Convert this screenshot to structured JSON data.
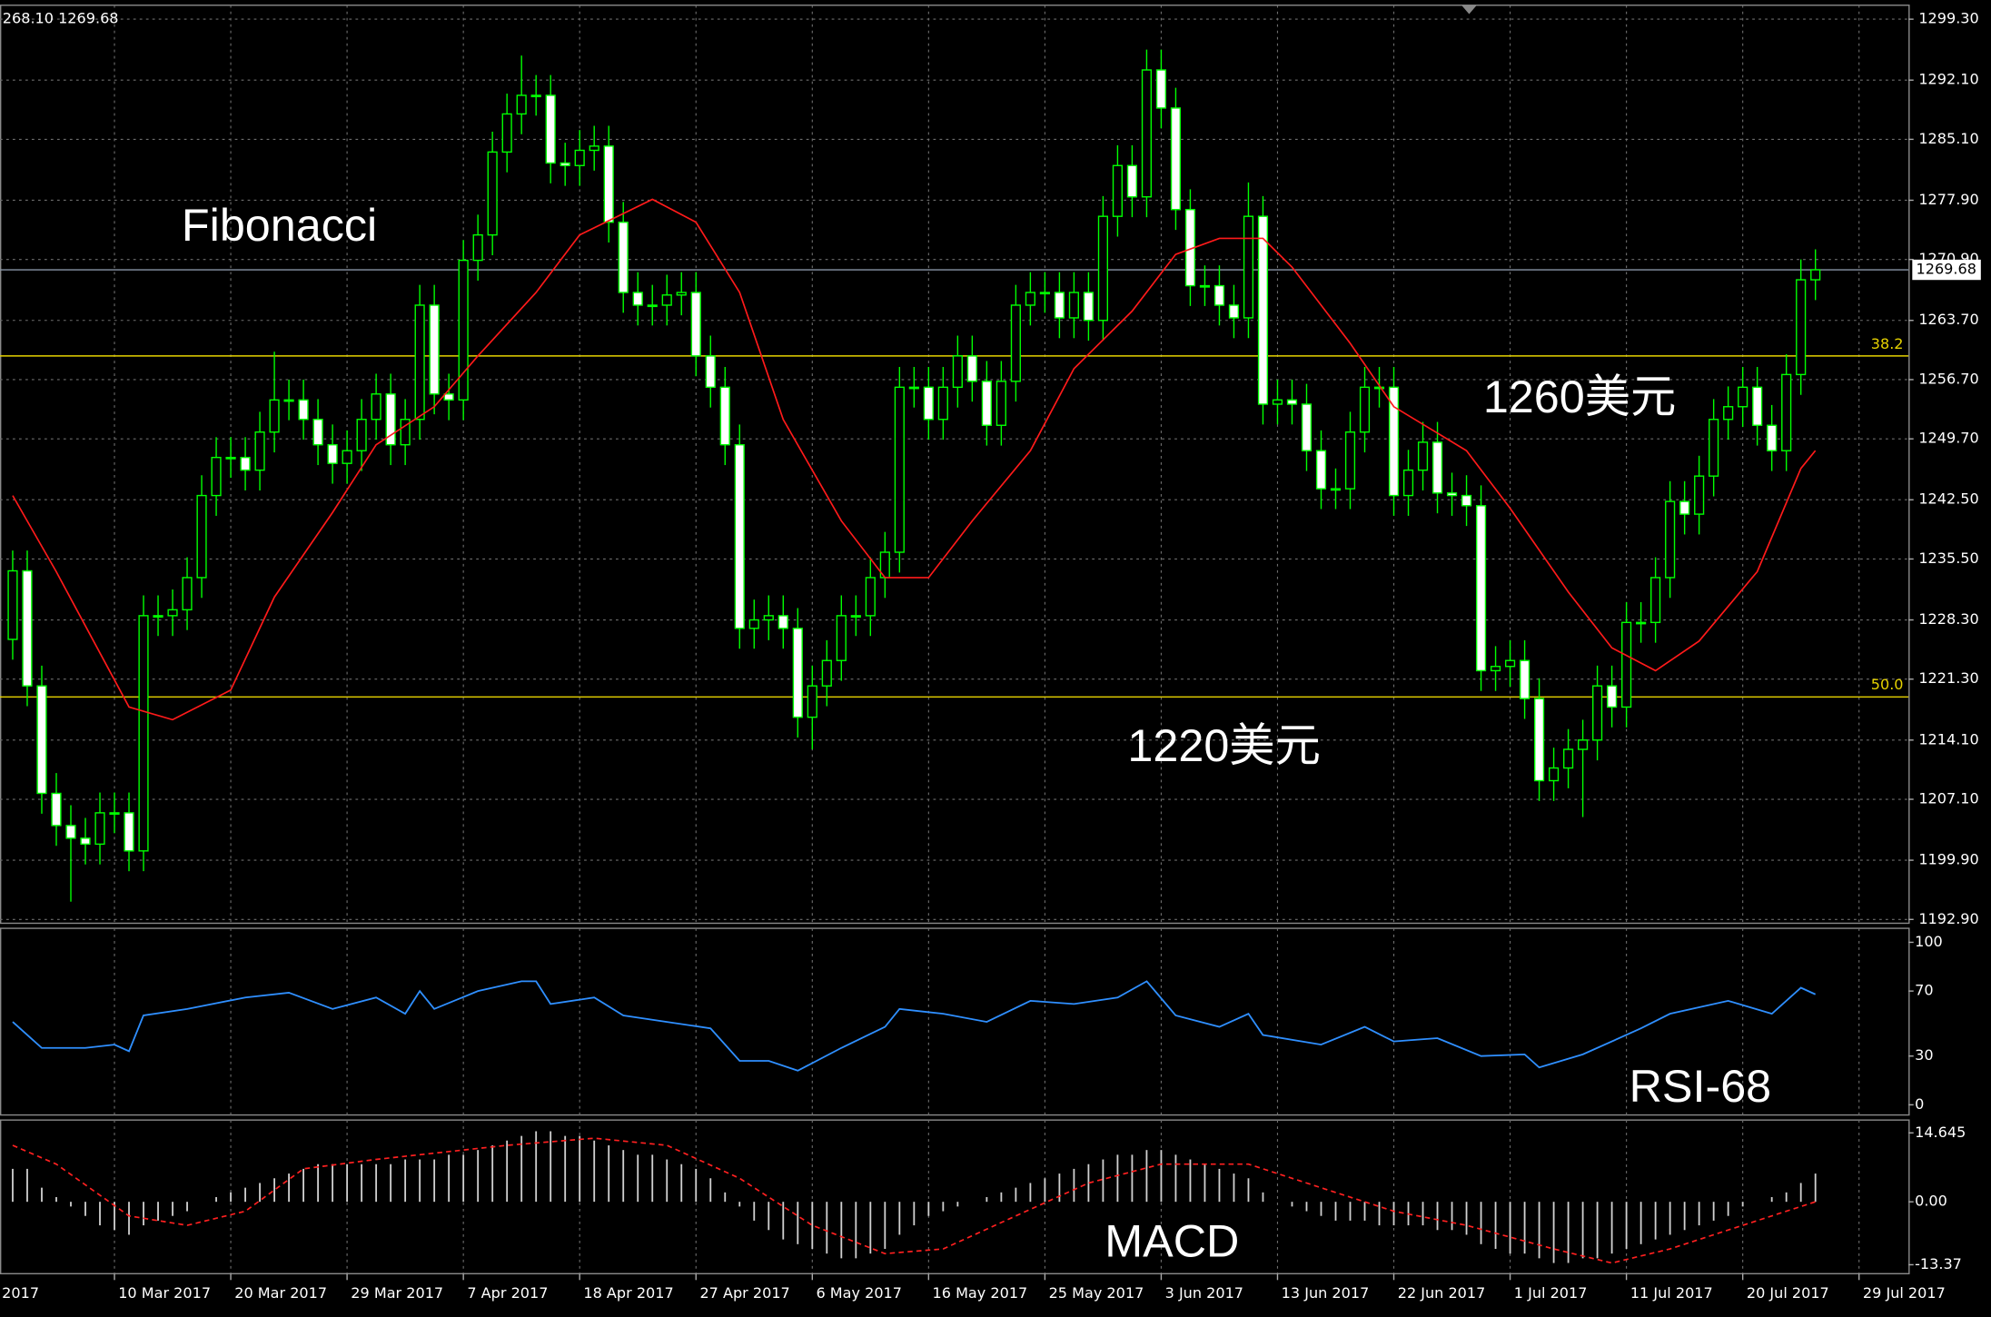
{
  "chart_data": [
    {
      "type": "candlestick",
      "header": "268.10 1269.68",
      "color": "#00ff00",
      "up_color": "#000000",
      "down_color": "#ffffff",
      "open": [
        1226.0,
        1234.1,
        1220.5,
        1207.8,
        1204.0,
        1202.5,
        1201.8,
        1205.5,
        1205.5,
        1201.0,
        1228.8,
        1228.8,
        1229.5,
        1233.3,
        1243.0,
        1247.5,
        1247.5,
        1246.0,
        1250.5,
        1254.3,
        1254.3,
        1252.0,
        1249.0,
        1246.8,
        1248.3,
        1252.0,
        1255.0,
        1249.0,
        1252.0,
        1265.5,
        1255.0,
        1254.3,
        1270.8,
        1273.8,
        1283.6,
        1288.1,
        1290.3,
        1290.3,
        1282.3,
        1282.0,
        1283.8,
        1284.3,
        1275.3,
        1267.0,
        1265.5,
        1265.5,
        1266.7,
        1267.0,
        1259.5,
        1255.8,
        1249.0,
        1227.3,
        1228.3,
        1228.8,
        1227.3,
        1216.8,
        1220.5,
        1223.5,
        1228.8,
        1228.8,
        1233.3,
        1236.3,
        1255.8,
        1255.8,
        1252.0,
        1255.8,
        1259.5,
        1256.5,
        1251.3,
        1256.5,
        1265.5,
        1267.0,
        1267.0,
        1264.0,
        1267.0,
        1263.7,
        1276.0,
        1282.0,
        1278.3,
        1293.3,
        1288.8,
        1276.8,
        1267.8,
        1267.8,
        1265.5,
        1264.0,
        1276.0,
        1253.8,
        1254.3,
        1253.8,
        1248.3,
        1243.8,
        1243.8,
        1250.5,
        1255.8,
        1255.8,
        1243.0,
        1246.0,
        1249.3,
        1243.3,
        1243.0,
        1241.8,
        1222.3,
        1222.8,
        1223.5,
        1219.0,
        1209.3,
        1210.8,
        1213.0,
        1214.1,
        1220.5,
        1218.0,
        1228.0,
        1228.0,
        1233.3,
        1242.3,
        1240.8,
        1245.3,
        1252.0,
        1253.5,
        1255.8,
        1251.3,
        1248.3,
        1257.3,
        1268.5
      ],
      "high": [
        1236.5,
        1236.5,
        1222.9,
        1210.2,
        1206.4,
        1204.9,
        1207.9,
        1207.9,
        1207.9,
        1231.2,
        1231.2,
        1231.9,
        1235.7,
        1245.4,
        1249.9,
        1249.9,
        1249.9,
        1252.9,
        1260.0,
        1256.7,
        1256.7,
        1254.4,
        1251.4,
        1250.7,
        1254.4,
        1257.4,
        1257.4,
        1254.4,
        1267.9,
        1267.9,
        1257.4,
        1273.2,
        1276.2,
        1286.0,
        1290.5,
        1295.0,
        1292.7,
        1292.7,
        1284.7,
        1286.2,
        1286.7,
        1286.7,
        1277.7,
        1269.4,
        1267.9,
        1269.1,
        1269.4,
        1269.4,
        1261.9,
        1258.2,
        1251.4,
        1230.7,
        1231.2,
        1231.2,
        1229.7,
        1222.9,
        1225.9,
        1231.2,
        1231.2,
        1235.7,
        1238.7,
        1258.2,
        1258.2,
        1258.2,
        1258.2,
        1261.9,
        1261.9,
        1258.9,
        1258.9,
        1267.9,
        1269.4,
        1269.4,
        1269.4,
        1269.4,
        1269.4,
        1278.4,
        1284.4,
        1284.4,
        1295.7,
        1295.7,
        1291.2,
        1279.2,
        1270.2,
        1270.2,
        1267.9,
        1280.0,
        1278.4,
        1256.7,
        1256.7,
        1256.2,
        1250.7,
        1246.2,
        1252.9,
        1258.2,
        1258.2,
        1258.2,
        1248.4,
        1251.7,
        1251.7,
        1245.7,
        1245.4,
        1244.2,
        1225.2,
        1225.9,
        1225.9,
        1221.4,
        1213.2,
        1215.4,
        1216.5,
        1222.9,
        1222.9,
        1230.4,
        1230.4,
        1235.7,
        1244.7,
        1244.7,
        1247.7,
        1254.4,
        1255.9,
        1258.2,
        1258.2,
        1253.7,
        1259.7,
        1270.9,
        1272.1
      ],
      "low": [
        1223.6,
        1218.1,
        1205.4,
        1201.6,
        1195.0,
        1199.4,
        1199.4,
        1203.1,
        1198.6,
        1198.6,
        1226.4,
        1226.4,
        1227.1,
        1230.9,
        1240.6,
        1245.1,
        1243.6,
        1243.6,
        1248.1,
        1251.9,
        1249.6,
        1246.6,
        1244.4,
        1244.4,
        1245.9,
        1249.6,
        1246.6,
        1246.6,
        1249.6,
        1252.6,
        1251.9,
        1251.9,
        1268.4,
        1271.4,
        1281.2,
        1285.7,
        1287.9,
        1279.9,
        1279.6,
        1279.6,
        1281.4,
        1272.9,
        1264.6,
        1263.1,
        1263.1,
        1263.1,
        1264.3,
        1257.1,
        1253.4,
        1246.6,
        1224.9,
        1224.9,
        1225.9,
        1224.9,
        1214.4,
        1213.0,
        1218.1,
        1221.1,
        1226.4,
        1226.4,
        1230.9,
        1233.9,
        1253.4,
        1249.6,
        1249.6,
        1253.4,
        1254.1,
        1248.9,
        1248.9,
        1254.1,
        1263.1,
        1264.6,
        1261.6,
        1261.6,
        1261.3,
        1261.3,
        1273.6,
        1275.9,
        1275.9,
        1286.4,
        1274.4,
        1265.4,
        1265.4,
        1263.1,
        1261.6,
        1261.6,
        1251.4,
        1251.4,
        1251.4,
        1245.9,
        1241.4,
        1241.4,
        1241.4,
        1248.1,
        1253.4,
        1240.6,
        1240.6,
        1243.6,
        1240.9,
        1240.6,
        1239.4,
        1219.9,
        1219.9,
        1220.4,
        1216.6,
        1206.9,
        1206.9,
        1208.4,
        1205.0,
        1211.7,
        1215.6,
        1215.6,
        1225.6,
        1225.6,
        1230.9,
        1238.4,
        1238.4,
        1242.9,
        1249.6,
        1251.1,
        1248.9,
        1245.9,
        1245.9,
        1254.9,
        1266.1
      ],
      "close": [
        1234.1,
        1220.5,
        1207.8,
        1204.0,
        1202.5,
        1201.8,
        1205.5,
        1205.5,
        1201.0,
        1228.8,
        1228.8,
        1229.5,
        1233.3,
        1243.0,
        1247.5,
        1247.5,
        1246.0,
        1250.5,
        1254.3,
        1254.3,
        1252.0,
        1249.0,
        1246.8,
        1248.3,
        1252.0,
        1255.0,
        1249.0,
        1252.0,
        1265.5,
        1255.0,
        1254.3,
        1270.8,
        1273.8,
        1283.6,
        1288.1,
        1290.3,
        1290.3,
        1282.3,
        1282.0,
        1283.8,
        1284.3,
        1275.3,
        1267.0,
        1265.5,
        1265.5,
        1266.7,
        1267.0,
        1259.5,
        1255.8,
        1249.0,
        1227.3,
        1228.3,
        1228.8,
        1227.3,
        1216.8,
        1220.5,
        1223.5,
        1228.8,
        1228.8,
        1233.3,
        1236.3,
        1255.8,
        1255.8,
        1252.0,
        1255.8,
        1259.5,
        1256.5,
        1251.3,
        1256.5,
        1265.5,
        1267.0,
        1267.0,
        1264.0,
        1267.0,
        1263.7,
        1276.0,
        1282.0,
        1278.3,
        1293.3,
        1288.8,
        1276.8,
        1267.8,
        1267.8,
        1265.5,
        1264.0,
        1276.0,
        1253.8,
        1254.3,
        1253.8,
        1248.3,
        1243.8,
        1243.8,
        1250.5,
        1255.8,
        1255.8,
        1243.0,
        1246.0,
        1249.3,
        1243.3,
        1243.0,
        1241.8,
        1222.3,
        1222.8,
        1223.5,
        1219.0,
        1209.3,
        1210.8,
        1213.0,
        1214.1,
        1220.5,
        1218.0,
        1228.0,
        1228.0,
        1233.3,
        1242.3,
        1240.8,
        1245.3,
        1252.0,
        1253.5,
        1255.8,
        1251.3,
        1248.3,
        1257.3,
        1268.5,
        1269.68
      ],
      "xlim": [
        -0.873,
        130.4
      ],
      "xticks": [
        {
          "value": -1,
          "label": "2017"
        },
        {
          "value": 7,
          "label": "10 Mar 2017"
        },
        {
          "value": 15,
          "label": "20 Mar 2017"
        },
        {
          "value": 23,
          "label": "29 Mar 2017"
        },
        {
          "value": 31,
          "label": "7 Apr 2017"
        },
        {
          "value": 39,
          "label": "18 Apr 2017"
        },
        {
          "value": 47,
          "label": "27 Apr 2017"
        },
        {
          "value": 55,
          "label": "6 May 2017"
        },
        {
          "value": 63,
          "label": "16 May 2017"
        },
        {
          "value": 71,
          "label": "25 May 2017"
        },
        {
          "value": 79,
          "label": "3 Jun 2017"
        },
        {
          "value": 87,
          "label": "13 Jun 2017"
        },
        {
          "value": 95,
          "label": "22 Jun 2017"
        },
        {
          "value": 103,
          "label": "1 Jul 2017"
        },
        {
          "value": 111,
          "label": "11 Jul 2017"
        },
        {
          "value": 119,
          "label": "20 Jul 2017"
        },
        {
          "value": 127,
          "label": "29 Jul 2017"
        }
      ],
      "ylim": [
        1192.45,
        1300.95
      ],
      "yticks": [
        {
          "value": 1299.3,
          "label": "1299.30"
        },
        {
          "value": 1292.1,
          "label": "1292.10"
        },
        {
          "value": 1285.1,
          "label": "1285.10"
        },
        {
          "value": 1277.9,
          "label": "1277.90"
        },
        {
          "value": 1270.9,
          "label": "1270.90"
        },
        {
          "value": 1263.7,
          "label": "1263.70"
        },
        {
          "value": 1256.7,
          "label": "1256.70"
        },
        {
          "value": 1249.7,
          "label": "1249.70"
        },
        {
          "value": 1242.5,
          "label": "1242.50"
        },
        {
          "value": 1235.5,
          "label": "1235.50"
        },
        {
          "value": 1228.3,
          "label": "1228.30"
        },
        {
          "value": 1221.3,
          "label": "1221.30"
        },
        {
          "value": 1214.1,
          "label": "1214.10"
        },
        {
          "value": 1207.1,
          "label": "1207.10"
        },
        {
          "value": 1199.9,
          "label": "1199.90"
        },
        {
          "value": 1192.9,
          "label": "1192.90"
        }
      ],
      "grid": true,
      "moving_average": {
        "color": "#ff1a1a",
        "x": [
          0,
          3,
          8,
          11,
          15,
          18,
          22,
          25,
          29,
          32,
          36,
          39,
          44,
          47,
          50,
          53,
          57,
          60,
          63,
          66,
          70,
          73,
          77,
          80,
          83,
          86,
          88,
          92,
          95,
          100,
          103,
          107,
          110,
          113,
          116,
          120,
          123,
          124
        ],
        "values": [
          1243.0,
          1234.0,
          1218.0,
          1216.5,
          1220.0,
          1231.0,
          1241.0,
          1249.0,
          1253.5,
          1259.5,
          1267.0,
          1273.8,
          1278.0,
          1275.3,
          1267.0,
          1252.0,
          1240.0,
          1233.3,
          1233.3,
          1240.0,
          1248.3,
          1258.0,
          1264.8,
          1271.5,
          1273.4,
          1273.4,
          1270.0,
          1261.0,
          1253.5,
          1248.3,
          1241.5,
          1231.6,
          1225.0,
          1222.3,
          1225.8,
          1234.0,
          1246.2,
          1248.3
        ]
      },
      "fib_color": "#e6d200",
      "fib_levels": [
        {
          "label": "38.2",
          "price": 1259.5
        },
        {
          "label": "50.0",
          "price": 1219.2
        }
      ],
      "current_price": {
        "value": 1269.68,
        "label": "1269.68"
      },
      "annotations": [
        "Fibonacci",
        "1260美元",
        "1220美元"
      ]
    },
    {
      "type": "line",
      "annotation": "RSI-68",
      "color": "#2f8fff",
      "x": [
        0,
        2,
        5,
        7,
        8,
        9,
        12,
        16,
        19,
        22,
        25,
        27,
        28,
        29,
        32,
        35,
        36,
        37,
        40,
        42,
        45,
        48,
        50,
        52,
        54,
        57,
        60,
        61,
        64,
        67,
        70,
        73,
        76,
        78,
        80,
        83,
        85,
        86,
        90,
        93,
        95,
        98,
        101,
        104,
        105,
        108,
        112,
        114,
        118,
        121,
        123,
        124
      ],
      "values": [
        51,
        35,
        35,
        37,
        33,
        55,
        59,
        66,
        69,
        59,
        66,
        56,
        70,
        59,
        70,
        76,
        76,
        62,
        66,
        55,
        51,
        47,
        27,
        27,
        21,
        35,
        48,
        59,
        56,
        51,
        64,
        62,
        66,
        76,
        55,
        48,
        56,
        43,
        37,
        48,
        39,
        41,
        30,
        31,
        23,
        31,
        47,
        56,
        64,
        56,
        72,
        68
      ],
      "ylim": [
        -6.25,
        108.6
      ],
      "yticks": [
        100,
        70,
        30,
        0
      ]
    },
    {
      "type": "bar",
      "annotation": "MACD",
      "color": "#d0d0d0",
      "values": [
        7,
        7,
        3,
        1,
        -1,
        -3,
        -5,
        -6,
        -7,
        -5,
        -4,
        -3,
        -2,
        0,
        1,
        2,
        3,
        4,
        5,
        6,
        7,
        8,
        8,
        8,
        8,
        8,
        8,
        9,
        9,
        9,
        10,
        10,
        11,
        12,
        13,
        14,
        15,
        15,
        14,
        14,
        13,
        12,
        11,
        10,
        10,
        9,
        8,
        7,
        5,
        2,
        -1,
        -4,
        -6,
        -8,
        -9,
        -10,
        -11,
        -12,
        -12,
        -11,
        -10,
        -7,
        -5,
        -3,
        -2,
        -1,
        0,
        1,
        2,
        3,
        4,
        5,
        6,
        7,
        8,
        9,
        10,
        10,
        11,
        11,
        10,
        9,
        8,
        7,
        6,
        5,
        2,
        0,
        -1,
        -2,
        -3,
        -4,
        -4,
        -4,
        -5,
        -5,
        -5,
        -5,
        -6,
        -6,
        -7,
        -9,
        -10,
        -11,
        -11,
        -12,
        -13,
        -13,
        -12,
        -12,
        -11,
        -10,
        -9,
        -8,
        -7,
        -6,
        -5,
        -4,
        -3,
        -1,
        0,
        1,
        2,
        4,
        6
      ],
      "signal": {
        "color": "#ff2020",
        "x": [
          0,
          3,
          8,
          12,
          16,
          20,
          25,
          34,
          40,
          45,
          50,
          55,
          60,
          64,
          69,
          74,
          79,
          85,
          90,
          95,
          100,
          106,
          110,
          114,
          120,
          124
        ],
        "values": [
          12,
          8,
          -3,
          -5,
          -2,
          7,
          9,
          12,
          13.5,
          12,
          5,
          -5,
          -11,
          -10,
          -3,
          4,
          8,
          8,
          3,
          -2,
          -5,
          -10,
          -13,
          -10,
          -4,
          0
        ]
      },
      "ylim": [
        -15.27,
        17.37
      ],
      "yticks": [
        14.645,
        {
          "value": 0,
          "label": "0.00"
        },
        -13.37
      ]
    }
  ]
}
